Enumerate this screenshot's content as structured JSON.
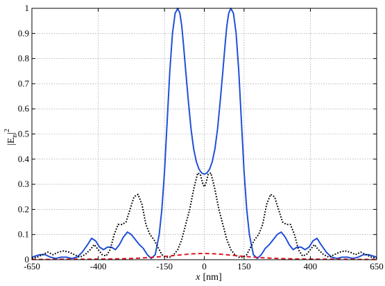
{
  "chart_data": {
    "type": "line",
    "title": "",
    "xlabel": "x [nm]",
    "xlabel_var": "x",
    "xlabel_unit": "[nm]",
    "ylabel": "|En|^2",
    "ylabel_parts": {
      "bar_open": "|E",
      "sub": "n",
      "bar_close": "|",
      "sup": "2"
    },
    "xlim": [
      -650,
      650
    ],
    "ylim": [
      0,
      1
    ],
    "x_ticks": [
      -650,
      -400,
      -150,
      0,
      150,
      400,
      650
    ],
    "y_ticks": [
      0,
      0.1,
      0.2,
      0.3,
      0.4,
      0.5,
      0.6,
      0.7,
      0.8,
      0.9,
      1
    ],
    "x_tick_labels": [
      "-650",
      "-400",
      "-150",
      "0",
      "150",
      "400",
      "650"
    ],
    "y_tick_labels": [
      "0",
      "0.1",
      "0.2",
      "0.3",
      "0.4",
      "0.5",
      "0.6",
      "0.7",
      "0.8",
      "0.9",
      "1"
    ],
    "grid": true,
    "legend": "none",
    "series": [
      {
        "style": "solid",
        "color": "#1f4fd8",
        "x": [
          -650,
          -620,
          -600,
          -580,
          -560,
          -540,
          -520,
          -500,
          -480,
          -460,
          -440,
          -425,
          -410,
          -395,
          -380,
          -365,
          -350,
          -335,
          -320,
          -305,
          -290,
          -275,
          -260,
          -245,
          -230,
          -215,
          -200,
          -185,
          -170,
          -160,
          -150,
          -140,
          -130,
          -120,
          -110,
          -100,
          -92,
          -85,
          -78,
          -70,
          -60,
          -50,
          -40,
          -30,
          -20,
          -10,
          0,
          10,
          20,
          30,
          40,
          50,
          60,
          70,
          78,
          85,
          92,
          100,
          110,
          120,
          130,
          140,
          150,
          160,
          170,
          185,
          200,
          215,
          230,
          245,
          260,
          275,
          290,
          305,
          320,
          335,
          350,
          365,
          380,
          395,
          410,
          425,
          440,
          460,
          480,
          500,
          520,
          540,
          560,
          580,
          600,
          620,
          650
        ],
        "y": [
          0.01,
          0.02,
          0.02,
          0.01,
          0.005,
          0.01,
          0.01,
          0.005,
          0.01,
          0.03,
          0.06,
          0.085,
          0.075,
          0.05,
          0.04,
          0.05,
          0.05,
          0.04,
          0.06,
          0.09,
          0.11,
          0.1,
          0.08,
          0.06,
          0.045,
          0.02,
          0.005,
          0.02,
          0.1,
          0.2,
          0.35,
          0.55,
          0.75,
          0.9,
          0.98,
          1.0,
          0.98,
          0.93,
          0.85,
          0.75,
          0.63,
          0.52,
          0.44,
          0.39,
          0.36,
          0.345,
          0.34,
          0.345,
          0.36,
          0.39,
          0.44,
          0.52,
          0.63,
          0.75,
          0.85,
          0.93,
          0.98,
          1.0,
          0.98,
          0.9,
          0.75,
          0.55,
          0.35,
          0.2,
          0.1,
          0.02,
          0.005,
          0.02,
          0.045,
          0.06,
          0.08,
          0.1,
          0.11,
          0.09,
          0.06,
          0.04,
          0.05,
          0.05,
          0.04,
          0.05,
          0.075,
          0.085,
          0.06,
          0.03,
          0.01,
          0.005,
          0.01,
          0.01,
          0.005,
          0.01,
          0.02,
          0.02,
          0.01
        ]
      },
      {
        "style": "dotted",
        "color": "#000000",
        "x": [
          -650,
          -630,
          -610,
          -590,
          -570,
          -550,
          -530,
          -510,
          -490,
          -470,
          -450,
          -430,
          -415,
          -400,
          -385,
          -370,
          -355,
          -340,
          -325,
          -310,
          -295,
          -280,
          -265,
          -250,
          -235,
          -220,
          -205,
          -190,
          -175,
          -160,
          -145,
          -130,
          -115,
          -100,
          -85,
          -70,
          -55,
          -40,
          -25,
          -15,
          -5,
          0,
          5,
          15,
          25,
          40,
          55,
          70,
          85,
          100,
          115,
          130,
          145,
          160,
          175,
          190,
          205,
          220,
          235,
          250,
          265,
          280,
          295,
          310,
          325,
          340,
          355,
          370,
          385,
          400,
          415,
          430,
          450,
          470,
          490,
          510,
          530,
          550,
          570,
          590,
          610,
          630,
          650
        ],
        "y": [
          0.005,
          0.01,
          0.02,
          0.03,
          0.02,
          0.03,
          0.035,
          0.03,
          0.02,
          0.01,
          0.02,
          0.04,
          0.06,
          0.04,
          0.02,
          0.015,
          0.04,
          0.1,
          0.14,
          0.14,
          0.15,
          0.2,
          0.25,
          0.26,
          0.22,
          0.14,
          0.1,
          0.08,
          0.05,
          0.02,
          0.01,
          0.01,
          0.02,
          0.04,
          0.08,
          0.14,
          0.2,
          0.28,
          0.345,
          0.34,
          0.3,
          0.29,
          0.3,
          0.34,
          0.345,
          0.28,
          0.2,
          0.14,
          0.08,
          0.04,
          0.02,
          0.01,
          0.01,
          0.02,
          0.05,
          0.08,
          0.1,
          0.14,
          0.22,
          0.26,
          0.25,
          0.2,
          0.15,
          0.14,
          0.14,
          0.1,
          0.04,
          0.015,
          0.02,
          0.04,
          0.06,
          0.04,
          0.02,
          0.01,
          0.02,
          0.03,
          0.035,
          0.03,
          0.02,
          0.03,
          0.02,
          0.01,
          0.005
        ]
      },
      {
        "style": "dashed",
        "color": "#e0141e",
        "x": [
          -650,
          -600,
          -550,
          -500,
          -450,
          -400,
          -350,
          -300,
          -250,
          -200,
          -150,
          -100,
          -50,
          0,
          50,
          100,
          150,
          200,
          250,
          300,
          350,
          400,
          450,
          500,
          550,
          600,
          650
        ],
        "y": [
          0.001,
          0.001,
          0.0015,
          0.002,
          0.002,
          0.0025,
          0.003,
          0.004,
          0.006,
          0.009,
          0.013,
          0.018,
          0.023,
          0.025,
          0.023,
          0.018,
          0.013,
          0.009,
          0.006,
          0.004,
          0.003,
          0.0025,
          0.002,
          0.002,
          0.0015,
          0.001,
          0.001
        ]
      }
    ]
  }
}
